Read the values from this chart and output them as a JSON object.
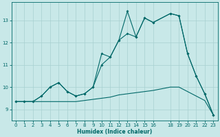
{
  "xlabel": "Humidex (Indice chaleur)",
  "bg_color": "#c8e8e8",
  "grid_color": "#a8d0d0",
  "line_color": "#006868",
  "xlim": [
    -0.5,
    23.5
  ],
  "ylim": [
    8.5,
    13.8
  ],
  "xticks": [
    0,
    1,
    2,
    3,
    4,
    5,
    6,
    7,
    8,
    9,
    10,
    11,
    12,
    13,
    14,
    15,
    16,
    18,
    19,
    20,
    21,
    22,
    23
  ],
  "yticks": [
    9,
    10,
    11,
    12,
    13
  ],
  "line1_x": [
    0,
    1,
    2,
    3,
    4,
    5,
    6,
    7,
    8,
    9,
    10,
    11,
    12,
    13,
    14,
    15,
    16,
    18,
    19,
    20,
    21,
    22,
    23
  ],
  "line1_y": [
    9.35,
    9.35,
    9.35,
    9.35,
    9.35,
    9.35,
    9.35,
    9.35,
    9.4,
    9.45,
    9.5,
    9.55,
    9.65,
    9.7,
    9.75,
    9.8,
    9.85,
    10.0,
    10.0,
    9.8,
    9.6,
    9.4,
    8.75
  ],
  "line2_x": [
    0,
    1,
    2,
    3,
    4,
    5,
    6,
    7,
    8,
    9,
    10,
    11,
    12,
    13,
    14,
    15,
    16,
    18,
    19,
    20,
    21,
    22,
    23
  ],
  "line2_y": [
    9.35,
    9.35,
    9.35,
    9.6,
    10.0,
    10.2,
    9.8,
    9.6,
    9.7,
    10.0,
    11.5,
    11.35,
    12.1,
    13.4,
    12.25,
    13.1,
    12.9,
    13.3,
    13.2,
    11.5,
    10.5,
    9.7,
    8.75
  ],
  "line3_x": [
    0,
    1,
    2,
    3,
    4,
    5,
    6,
    7,
    8,
    9,
    10,
    11,
    12,
    13,
    14,
    15,
    16,
    18,
    19,
    20,
    21,
    22,
    23
  ],
  "line3_y": [
    9.35,
    9.35,
    9.35,
    9.6,
    10.0,
    10.2,
    9.8,
    9.6,
    9.7,
    10.0,
    11.0,
    11.35,
    12.1,
    12.4,
    12.25,
    13.1,
    12.9,
    13.3,
    13.2,
    11.5,
    10.5,
    9.7,
    8.75
  ]
}
